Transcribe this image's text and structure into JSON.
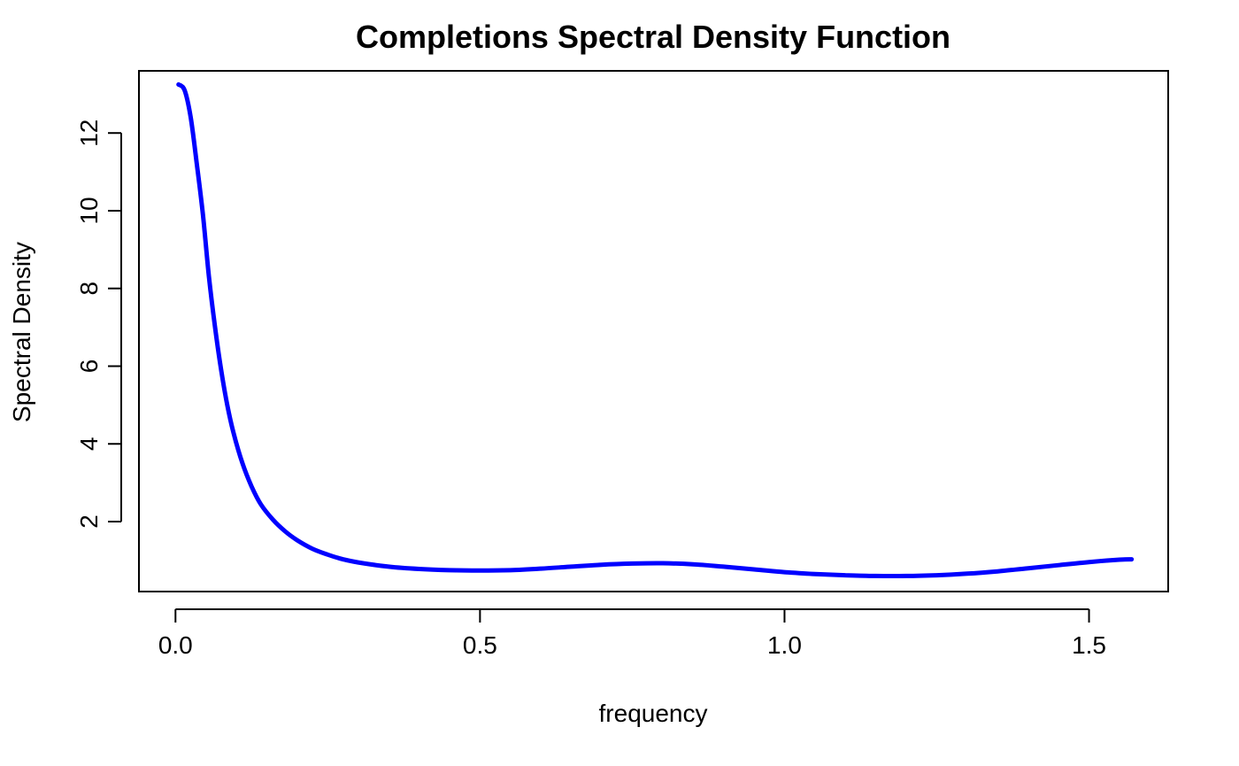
{
  "chart_data": {
    "type": "line",
    "title": "Completions Spectral Density Function",
    "xlabel": "frequency",
    "ylabel": "Spectral Density",
    "xlim": [
      -0.06,
      1.63
    ],
    "ylim": [
      0.2,
      13.6
    ],
    "x_ticks": [
      0.0,
      0.5,
      1.0,
      1.5
    ],
    "x_tick_labels": [
      "0.0",
      "0.5",
      "1.0",
      "1.5"
    ],
    "y_ticks": [
      2,
      4,
      6,
      8,
      10,
      12
    ],
    "y_tick_labels": [
      "2",
      "4",
      "6",
      "8",
      "10",
      "12"
    ],
    "grid": false,
    "series": [
      {
        "color": "#0000ff",
        "x": [
          0.005,
          0.015,
          0.025,
          0.035,
          0.045,
          0.055,
          0.065,
          0.075,
          0.085,
          0.095,
          0.11,
          0.125,
          0.14,
          0.16,
          0.18,
          0.2,
          0.225,
          0.25,
          0.275,
          0.3,
          0.35,
          0.4,
          0.45,
          0.5,
          0.55,
          0.6,
          0.65,
          0.7,
          0.75,
          0.8,
          0.85,
          0.9,
          0.95,
          1.0,
          1.05,
          1.1,
          1.15,
          1.2,
          1.25,
          1.3,
          1.35,
          1.4,
          1.45,
          1.5,
          1.55,
          1.57
        ],
        "y": [
          13.25,
          13.1,
          12.4,
          11.2,
          9.9,
          8.3,
          7.0,
          5.9,
          5.0,
          4.3,
          3.5,
          2.9,
          2.45,
          2.05,
          1.75,
          1.52,
          1.3,
          1.15,
          1.03,
          0.95,
          0.84,
          0.78,
          0.75,
          0.74,
          0.75,
          0.79,
          0.84,
          0.89,
          0.92,
          0.93,
          0.9,
          0.84,
          0.77,
          0.7,
          0.65,
          0.62,
          0.6,
          0.6,
          0.62,
          0.66,
          0.72,
          0.8,
          0.88,
          0.96,
          1.02,
          1.03
        ]
      }
    ]
  }
}
